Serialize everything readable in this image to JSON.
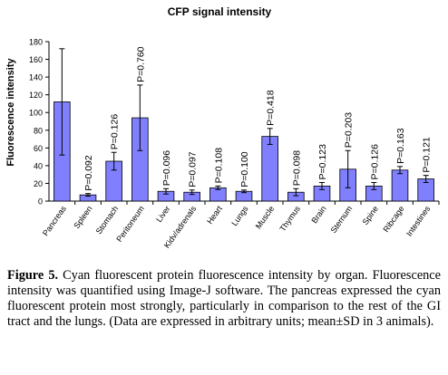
{
  "chart_data": {
    "type": "bar",
    "title": "CFP signal intensity",
    "ylabel": "Fluorescence intensity",
    "xlabel": "",
    "ylim": [
      0,
      180
    ],
    "yticks": [
      0,
      20,
      40,
      60,
      80,
      100,
      120,
      140,
      160,
      180
    ],
    "categories": [
      "Pancreas",
      "Spleen",
      "Stomach",
      "Peritoneum",
      "Liver",
      "Kidv/adrenals",
      "Heart",
      "Lungs",
      "Muscle",
      "Thymus",
      "Brain",
      "Sternum",
      "Spine",
      "Ribcage",
      "Intestines"
    ],
    "values": [
      112,
      7,
      45,
      94,
      11,
      10,
      15,
      11,
      73,
      10,
      17,
      36,
      17,
      35,
      25
    ],
    "errors": [
      60,
      1.5,
      10,
      37,
      3,
      2.5,
      2,
      1.5,
      9,
      4,
      4,
      21,
      4,
      4,
      4
    ],
    "annotations": [
      "",
      "P=0.092",
      "P=0.126",
      "P=0.760",
      "P=0.096",
      "P=0.097",
      "P=0.108",
      "P=0.100",
      "P=0.418",
      "P=0.098",
      "P=0.123",
      "P=0.203",
      "P=0.126",
      "P=0.163",
      "P=0.121"
    ],
    "bar_color": "#8080ff",
    "grid": false,
    "legend": "none"
  },
  "caption": {
    "label": "Figure 5.",
    "text": " Cyan fluorescent protein fluorescence intensity by organ. Fluorescence intensity was quantified using Image-J software. The pancreas expressed the cyan fluorescent protein most strongly, particularly in comparison to the rest of the GI tract and the lungs. (Data are expressed in arbitrary units; mean±SD in 3 animals)."
  }
}
